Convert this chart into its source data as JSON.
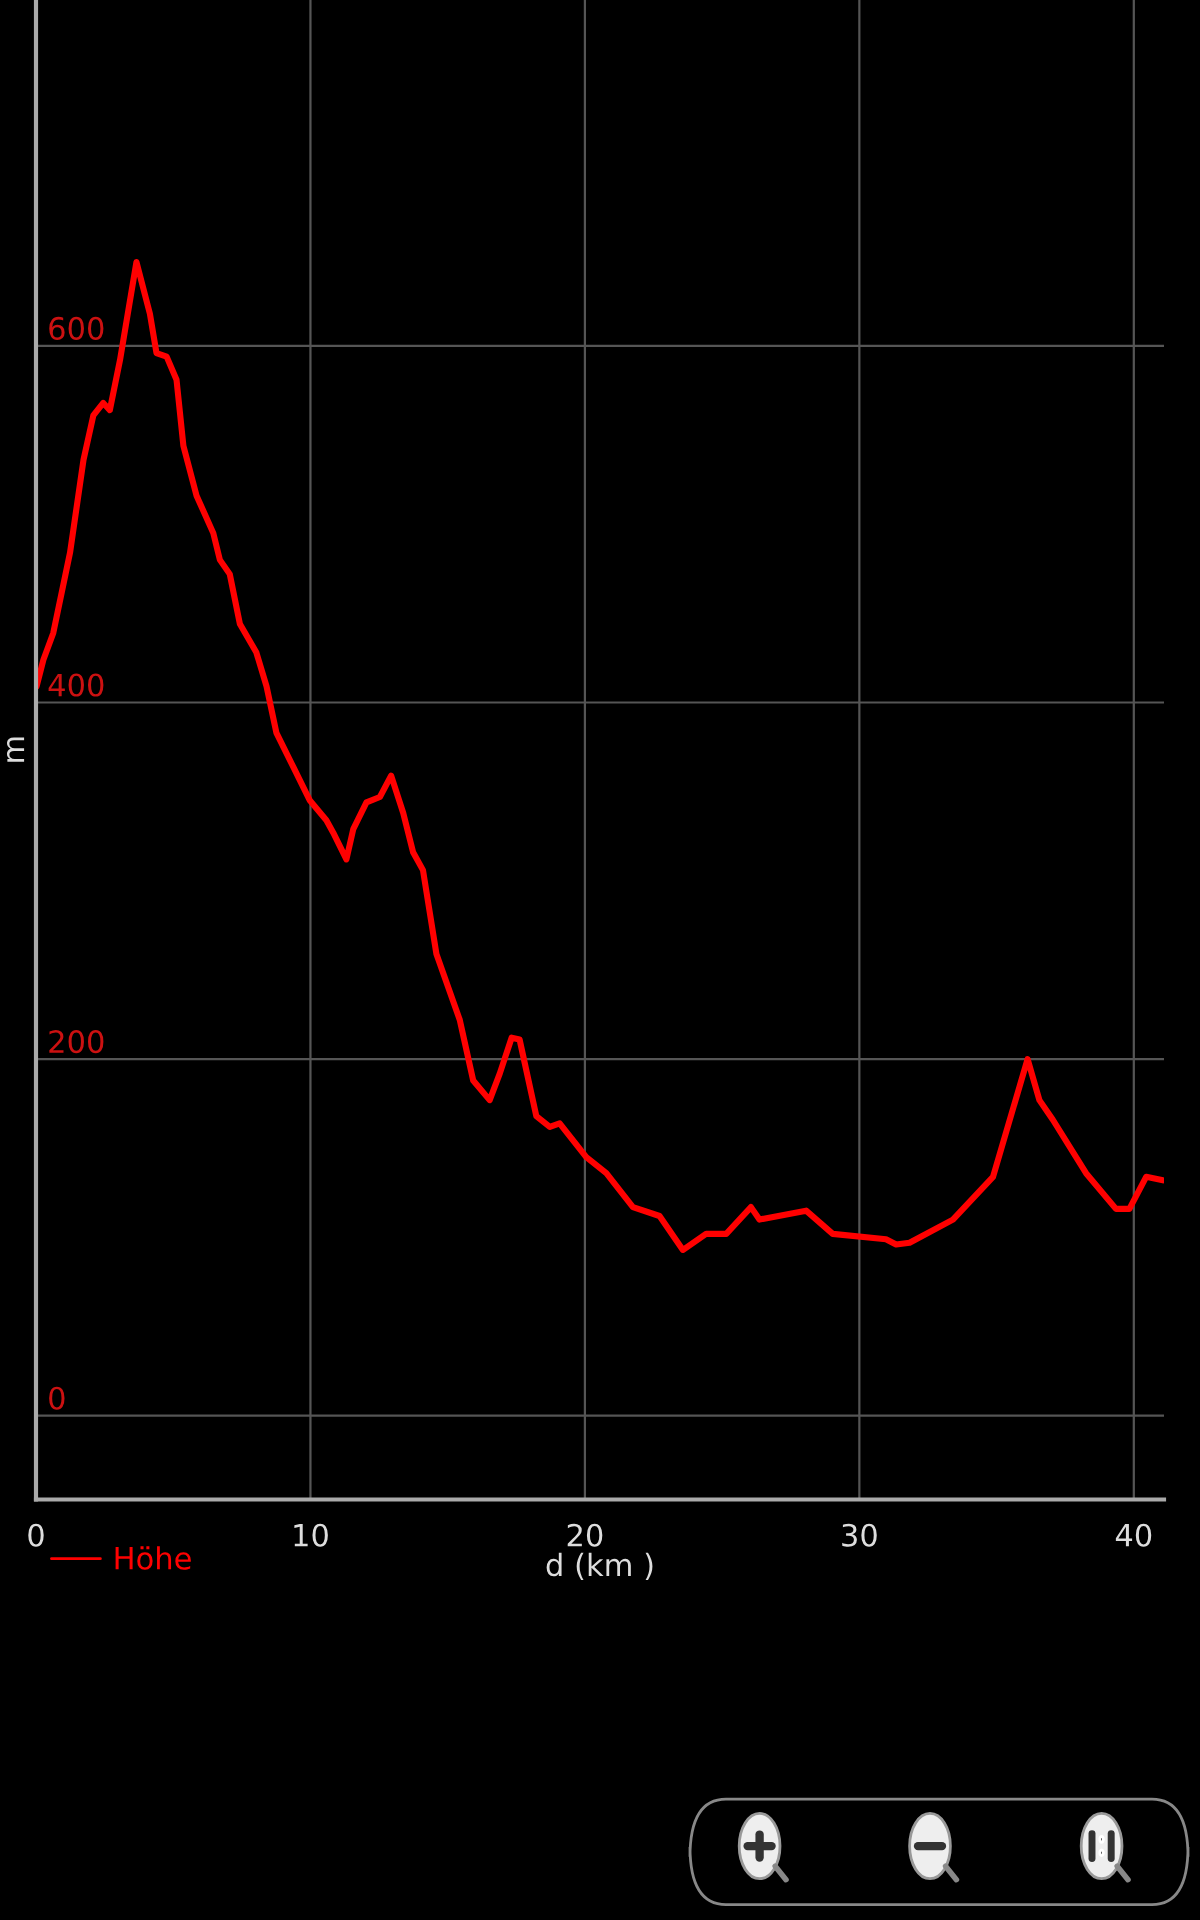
{
  "chart_data": {
    "type": "line",
    "xlabel": "d (km )",
    "ylabel": "m",
    "x": [
      0.02,
      0.27,
      0.63,
      1.24,
      1.73,
      2.09,
      2.45,
      2.69,
      3.06,
      3.66,
      4.15,
      4.39,
      4.76,
      5.12,
      5.37,
      5.85,
      6.46,
      6.7,
      7.06,
      7.43,
      8.03,
      8.4,
      8.76,
      9.37,
      9.98,
      10.58,
      10.83,
      11.31,
      11.56,
      12.04,
      12.53,
      12.94,
      13.38,
      13.74,
      14.1,
      14.59,
      15.44,
      15.93,
      16.53,
      16.9,
      17.33,
      17.62,
      18.23,
      18.72,
      19.08,
      20.05,
      20.78,
      21.75,
      22.72,
      23.57,
      24.42,
      25.15,
      26.05,
      26.36,
      28.06,
      29.03,
      30.97,
      31.34,
      31.83,
      33.41,
      34.87,
      36.13,
      36.56,
      37.05,
      38.26,
      39.35,
      39.84,
      40.45,
      41.06
    ],
    "series": [
      {
        "name": "Höhe",
        "color": "#ff0000",
        "values": [
          409,
          424,
          439,
          484,
          536,
          561,
          568,
          564,
          592,
          647,
          618,
          596,
          594,
          581,
          544,
          516,
          495,
          480,
          472,
          444,
          428,
          409,
          383,
          364,
          345,
          334,
          327,
          312,
          329,
          344,
          347,
          359,
          338,
          316,
          306,
          259,
          222,
          188,
          177,
          192,
          212,
          211,
          168,
          162,
          164,
          145,
          136,
          117,
          112,
          93,
          102,
          102,
          117,
          110,
          115,
          102,
          99,
          96,
          97,
          110,
          134,
          200,
          177,
          166,
          136,
          116,
          116,
          134,
          132
        ]
      }
    ],
    "xlim": [
      0,
      41.1
    ],
    "ylim": [
      -47,
      794
    ],
    "xticks": [
      0,
      10,
      20,
      30,
      40
    ],
    "yticks": [
      0,
      200,
      400,
      600
    ],
    "grid": true,
    "legend": "bottom left"
  }
}
